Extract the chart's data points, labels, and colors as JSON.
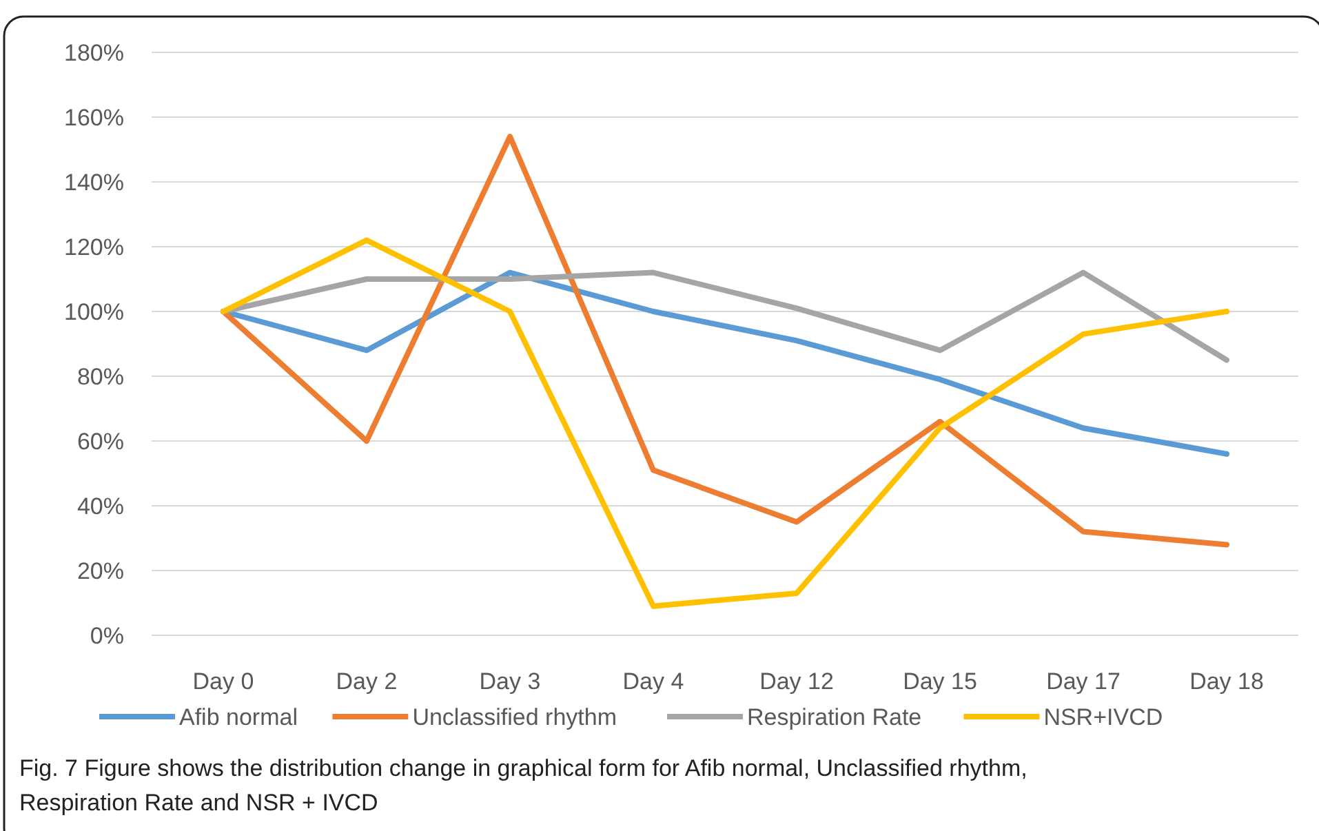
{
  "chart_data": {
    "type": "line",
    "categories": [
      "Day 0",
      "Day 2",
      "Day 3",
      "Day 4",
      "Day 12",
      "Day 15",
      "Day 17",
      "Day 18"
    ],
    "series": [
      {
        "name": "Afib normal",
        "color": "#5b9bd5",
        "values": [
          100,
          88,
          112,
          100,
          91,
          79,
          64,
          56
        ]
      },
      {
        "name": "Unclassified rhythm",
        "color": "#ed7d31",
        "values": [
          100,
          60,
          154,
          51,
          35,
          66,
          32,
          28
        ]
      },
      {
        "name": "Respiration Rate",
        "color": "#a5a5a5",
        "values": [
          100,
          110,
          110,
          112,
          101,
          88,
          112,
          85
        ]
      },
      {
        "name": "NSR+IVCD",
        "color": "#ffc000",
        "values": [
          100,
          122,
          100,
          9,
          13,
          64,
          93,
          100
        ]
      }
    ],
    "ylim": [
      0,
      180
    ],
    "yticks": [
      {
        "value": 0,
        "label": "0%"
      },
      {
        "value": 20,
        "label": "20%"
      },
      {
        "value": 40,
        "label": "40%"
      },
      {
        "value": 60,
        "label": "60%"
      },
      {
        "value": 80,
        "label": "80%"
      },
      {
        "value": 100,
        "label": "100%"
      },
      {
        "value": 120,
        "label": "120%"
      },
      {
        "value": 140,
        "label": "140%"
      },
      {
        "value": 160,
        "label": "160%"
      },
      {
        "value": 180,
        "label": "180%"
      }
    ],
    "grid": "y",
    "legend": "bottom",
    "marker": "none",
    "line_style": "solid",
    "annotations": [
      "Fig. 7 Figure shows the distribution change in graphical form for Afib normal, Unclassified rhythm, Respiration Rate and NSR + IVCD"
    ]
  }
}
